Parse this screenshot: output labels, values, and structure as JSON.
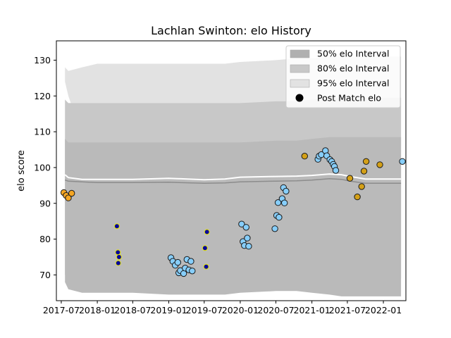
{
  "chart_data": {
    "type": "scatter",
    "title": "Lachlan Swinton: elo History",
    "xlabel": "",
    "ylabel": "elo score",
    "x_ticks": [
      "2017-07",
      "2018-01",
      "2018-07",
      "2019-01",
      "2019-07",
      "2020-01",
      "2020-07",
      "2021-01",
      "2021-07",
      "2022-01"
    ],
    "y_ticks": [
      70,
      80,
      90,
      100,
      110,
      120,
      130
    ],
    "xlim": [
      "2017-06-06",
      "2022-04-26"
    ],
    "ylim": [
      62.8,
      135.4
    ],
    "legend": {
      "placement": "top-right",
      "entries": [
        {
          "label": "50% elo Interval",
          "color": "#b0b0b0",
          "kind": "patch"
        },
        {
          "label": "80% elo Interval",
          "color": "#c8c8c8",
          "kind": "patch"
        },
        {
          "label": "95% elo Interval",
          "color": "#e2e2e2",
          "kind": "patch"
        },
        {
          "label": "Post Match elo",
          "color": "#000000",
          "kind": "marker"
        }
      ]
    },
    "bands": {
      "x": [
        "2017-07-20",
        "2017-08-06",
        "2017-10-15",
        "2018-01-01",
        "2018-07-01",
        "2019-01-01",
        "2019-07-01",
        "2019-10-15",
        "2020-01-01",
        "2020-07-01",
        "2020-10-15",
        "2021-01-01",
        "2021-04-01",
        "2021-06-01",
        "2021-07-15",
        "2021-10-01",
        "2022-01-01",
        "2022-04-01"
      ],
      "p95": [
        [
          124,
          128
        ],
        [
          120,
          127
        ],
        [
          109,
          128
        ],
        [
          108,
          129
        ],
        [
          108,
          129
        ],
        [
          107,
          129
        ],
        [
          107,
          129
        ],
        [
          108,
          129
        ],
        [
          108,
          129.5
        ],
        [
          108,
          130
        ],
        [
          108,
          130.5
        ],
        [
          107.5,
          130.5
        ],
        [
          106.5,
          131
        ],
        [
          106,
          131.5
        ],
        [
          106,
          131
        ],
        [
          106,
          131
        ],
        [
          106,
          131
        ],
        [
          106,
          131
        ]
      ],
      "p80": [
        [
          70,
          119
        ],
        [
          72,
          118
        ],
        [
          72,
          118
        ],
        [
          72,
          118
        ],
        [
          72,
          118
        ],
        [
          72,
          118
        ],
        [
          72,
          118
        ],
        [
          72,
          118
        ],
        [
          72,
          118
        ],
        [
          71.5,
          118.5
        ],
        [
          71.5,
          118.5
        ],
        [
          70.5,
          119
        ],
        [
          69.5,
          119.5
        ],
        [
          69,
          119.5
        ],
        [
          69,
          119.5
        ],
        [
          69,
          119.5
        ],
        [
          69,
          119.5
        ],
        [
          69,
          119.5
        ]
      ],
      "p50": [
        [
          68,
          108
        ],
        [
          66,
          107
        ],
        [
          65,
          107
        ],
        [
          65,
          107
        ],
        [
          65,
          107
        ],
        [
          64.5,
          107
        ],
        [
          64.5,
          107
        ],
        [
          64.5,
          107
        ],
        [
          65,
          107
        ],
        [
          65.5,
          107.5
        ],
        [
          65.5,
          107.5
        ],
        [
          65,
          108
        ],
        [
          64.5,
          108.5
        ],
        [
          64,
          108.5
        ],
        [
          64,
          108.5
        ],
        [
          64,
          108.5
        ],
        [
          64,
          108.5
        ],
        [
          64,
          108.5
        ]
      ],
      "upper_line": [
        98,
        97.2,
        96.7,
        96.7,
        96.7,
        97,
        96.6,
        96.8,
        97.3,
        97.5,
        97.6,
        97.8,
        98.2,
        98,
        97.5,
        96.8,
        96.8,
        96.8
      ],
      "mean_line": [
        96.5,
        96.2,
        96,
        95.8,
        95.8,
        95.9,
        95.6,
        95.7,
        96,
        96.2,
        96.3,
        96.5,
        96.9,
        96.7,
        96.2,
        95.6,
        95.6,
        95.6
      ]
    },
    "series": [
      {
        "color": "#f5a623",
        "points": [
          {
            "x": "2017-07-14",
            "y": 93.0
          },
          {
            "x": "2017-07-26",
            "y": 92.2
          },
          {
            "x": "2017-08-06",
            "y": 91.5
          },
          {
            "x": "2017-08-23",
            "y": 92.8
          }
        ]
      },
      {
        "color": "#0000a0",
        "points": [
          {
            "x": "2018-04-11",
            "y": 83.6
          },
          {
            "x": "2018-04-16",
            "y": 76.3
          },
          {
            "x": "2018-04-22",
            "y": 75.0
          },
          {
            "x": "2018-04-18",
            "y": 73.3
          },
          {
            "x": "2019-07-05",
            "y": 77.5
          },
          {
            "x": "2019-07-15",
            "y": 82.0
          },
          {
            "x": "2019-07-11",
            "y": 72.3
          }
        ]
      },
      {
        "color": "#87cefa",
        "points": [
          {
            "x": "2019-01-12",
            "y": 74.8
          },
          {
            "x": "2019-01-22",
            "y": 73.8
          },
          {
            "x": "2019-02-03",
            "y": 72.7
          },
          {
            "x": "2019-02-16",
            "y": 73.5
          },
          {
            "x": "2019-02-21",
            "y": 70.6
          },
          {
            "x": "2019-03-01",
            "y": 71.2
          },
          {
            "x": "2019-03-18",
            "y": 70.4
          },
          {
            "x": "2019-03-26",
            "y": 71.9
          },
          {
            "x": "2019-04-04",
            "y": 74.3
          },
          {
            "x": "2019-04-14",
            "y": 71.4
          },
          {
            "x": "2019-04-24",
            "y": 73.8
          },
          {
            "x": "2019-05-01",
            "y": 71.1
          },
          {
            "x": "2020-01-08",
            "y": 84.2
          },
          {
            "x": "2020-01-15",
            "y": 79.3
          },
          {
            "x": "2020-01-22",
            "y": 78.2
          },
          {
            "x": "2020-01-31",
            "y": 83.3
          },
          {
            "x": "2020-02-06",
            "y": 80.3
          },
          {
            "x": "2020-02-13",
            "y": 78.0
          },
          {
            "x": "2020-06-26",
            "y": 82.9
          },
          {
            "x": "2020-07-05",
            "y": 86.6
          },
          {
            "x": "2020-07-12",
            "y": 90.2
          },
          {
            "x": "2020-07-17",
            "y": 86.1
          },
          {
            "x": "2020-08-02",
            "y": 91.3
          },
          {
            "x": "2020-08-09",
            "y": 94.4
          },
          {
            "x": "2020-08-14",
            "y": 90.1
          },
          {
            "x": "2020-08-22",
            "y": 93.4
          },
          {
            "x": "2021-02-01",
            "y": 102.3
          },
          {
            "x": "2021-02-07",
            "y": 103.2
          },
          {
            "x": "2021-02-18",
            "y": 103.6
          },
          {
            "x": "2021-03-11",
            "y": 104.7
          },
          {
            "x": "2021-03-18",
            "y": 103.3
          },
          {
            "x": "2021-04-03",
            "y": 102.2
          },
          {
            "x": "2021-04-12",
            "y": 101.7
          },
          {
            "x": "2021-04-20",
            "y": 100.9
          },
          {
            "x": "2021-04-26",
            "y": 100.3
          },
          {
            "x": "2021-05-03",
            "y": 99.2
          },
          {
            "x": "2022-04-08",
            "y": 101.7
          }
        ]
      },
      {
        "color": "#d4a017",
        "points": [
          {
            "x": "2020-11-25",
            "y": 103.2
          },
          {
            "x": "2021-07-14",
            "y": 97.0
          },
          {
            "x": "2021-08-21",
            "y": 91.8
          },
          {
            "x": "2021-09-12",
            "y": 94.7
          },
          {
            "x": "2021-09-24",
            "y": 99.0
          },
          {
            "x": "2021-10-05",
            "y": 101.7
          },
          {
            "x": "2021-12-14",
            "y": 100.8
          }
        ]
      }
    ]
  }
}
